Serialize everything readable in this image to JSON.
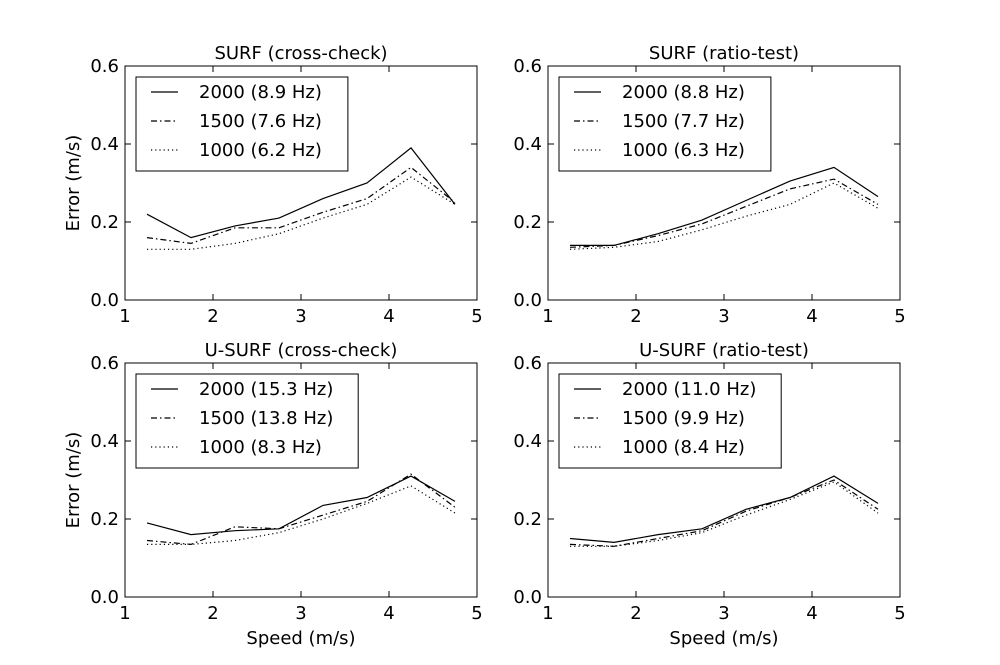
{
  "chart_data": [
    {
      "type": "line",
      "title": "SURF (cross-check)",
      "xlabel": "",
      "ylabel": "Error (m/s)",
      "xlim": [
        1,
        5
      ],
      "ylim": [
        0,
        0.6
      ],
      "xticks": [
        "1",
        "2",
        "3",
        "4",
        "5"
      ],
      "yticks": [
        "0.0",
        "0.2",
        "0.4",
        "0.6"
      ],
      "legend_position": "top-left",
      "x": [
        1.25,
        1.75,
        2.25,
        2.75,
        3.25,
        3.75,
        4.25,
        4.75
      ],
      "series": [
        {
          "name": "2000 (8.9 Hz)",
          "style": "solid",
          "values": [
            0.22,
            0.16,
            0.19,
            0.21,
            0.26,
            0.3,
            0.39,
            0.245
          ]
        },
        {
          "name": "1500 (7.6 Hz)",
          "style": "dashdot",
          "values": [
            0.16,
            0.145,
            0.185,
            0.185,
            0.225,
            0.26,
            0.34,
            0.25
          ]
        },
        {
          "name": "1000 (6.2 Hz)",
          "style": "dotted",
          "values": [
            0.13,
            0.13,
            0.145,
            0.17,
            0.21,
            0.245,
            0.315,
            0.245
          ]
        }
      ]
    },
    {
      "type": "line",
      "title": "SURF (ratio-test)",
      "xlabel": "",
      "ylabel": "",
      "xlim": [
        1,
        5
      ],
      "ylim": [
        0,
        0.6
      ],
      "xticks": [
        "1",
        "2",
        "3",
        "4",
        "5"
      ],
      "yticks": [
        "0.0",
        "0.2",
        "0.4",
        "0.6"
      ],
      "legend_position": "top-left",
      "x": [
        1.25,
        1.75,
        2.25,
        2.75,
        3.25,
        3.75,
        4.25,
        4.75
      ],
      "series": [
        {
          "name": "2000 (8.8 Hz)",
          "style": "solid",
          "values": [
            0.14,
            0.14,
            0.17,
            0.205,
            0.255,
            0.305,
            0.34,
            0.265
          ]
        },
        {
          "name": "1500 (7.7 Hz)",
          "style": "dashdot",
          "values": [
            0.135,
            0.14,
            0.165,
            0.195,
            0.24,
            0.285,
            0.31,
            0.245
          ]
        },
        {
          "name": "1000 (6.3 Hz)",
          "style": "dotted",
          "values": [
            0.13,
            0.135,
            0.15,
            0.18,
            0.215,
            0.245,
            0.3,
            0.235
          ]
        }
      ]
    },
    {
      "type": "line",
      "title": "U-SURF (cross-check)",
      "xlabel": "Speed (m/s)",
      "ylabel": "Error (m/s)",
      "xlim": [
        1,
        5
      ],
      "ylim": [
        0,
        0.6
      ],
      "xticks": [
        "1",
        "2",
        "3",
        "4",
        "5"
      ],
      "yticks": [
        "0.0",
        "0.2",
        "0.4",
        "0.6"
      ],
      "legend_position": "top-left",
      "x": [
        1.25,
        1.75,
        2.25,
        2.75,
        3.25,
        3.75,
        4.25,
        4.75
      ],
      "series": [
        {
          "name": "2000 (15.3 Hz)",
          "style": "solid",
          "values": [
            0.19,
            0.16,
            0.17,
            0.175,
            0.235,
            0.255,
            0.31,
            0.245
          ]
        },
        {
          "name": "1500 (13.8 Hz)",
          "style": "dashdot",
          "values": [
            0.145,
            0.135,
            0.18,
            0.175,
            0.21,
            0.245,
            0.315,
            0.23
          ]
        },
        {
          "name": "1000 (8.3 Hz)",
          "style": "dotted",
          "values": [
            0.135,
            0.135,
            0.145,
            0.165,
            0.2,
            0.24,
            0.285,
            0.215
          ]
        }
      ]
    },
    {
      "type": "line",
      "title": "U-SURF (ratio-test)",
      "xlabel": "Speed (m/s)",
      "ylabel": "",
      "xlim": [
        1,
        5
      ],
      "ylim": [
        0,
        0.6
      ],
      "xticks": [
        "1",
        "2",
        "3",
        "4",
        "5"
      ],
      "yticks": [
        "0.0",
        "0.2",
        "0.4",
        "0.6"
      ],
      "legend_position": "top-left",
      "x": [
        1.25,
        1.75,
        2.25,
        2.75,
        3.25,
        3.75,
        4.25,
        4.75
      ],
      "series": [
        {
          "name": "2000 (11.0 Hz)",
          "style": "solid",
          "values": [
            0.15,
            0.14,
            0.16,
            0.175,
            0.225,
            0.255,
            0.31,
            0.24
          ]
        },
        {
          "name": "1500 (9.9 Hz)",
          "style": "dashdot",
          "values": [
            0.135,
            0.13,
            0.15,
            0.17,
            0.22,
            0.255,
            0.3,
            0.225
          ]
        },
        {
          "name": "1000 (8.4 Hz)",
          "style": "dotted",
          "values": [
            0.13,
            0.13,
            0.145,
            0.165,
            0.21,
            0.25,
            0.295,
            0.215
          ]
        }
      ]
    }
  ]
}
